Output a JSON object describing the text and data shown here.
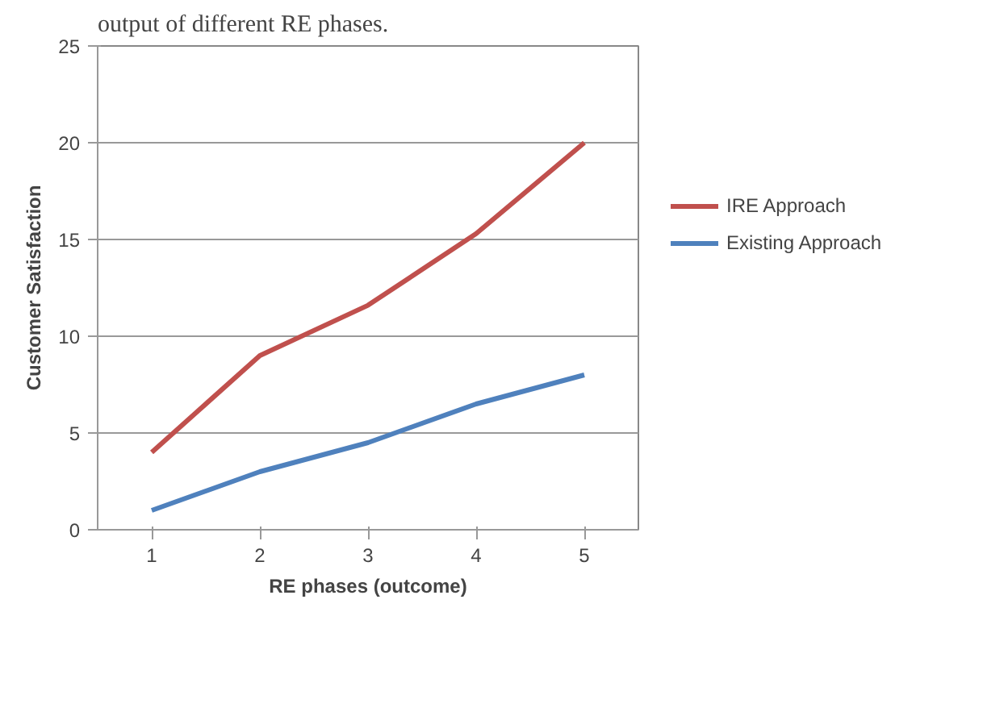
{
  "chart_data": {
    "type": "line",
    "xlabel": "RE phases (outcome)",
    "ylabel": "Customer Satisfaction",
    "categories": [
      "1",
      "2",
      "3",
      "4",
      "5"
    ],
    "series": [
      {
        "name": "IRE Approach",
        "color": "#c0504d",
        "values": [
          4,
          9,
          11.6,
          15.3,
          20
        ]
      },
      {
        "name": "Existing Approach",
        "color": "#4f81bd",
        "values": [
          1,
          3,
          4.5,
          6.5,
          8
        ]
      }
    ],
    "ylim": [
      0,
      25
    ],
    "yticks": [
      0,
      5,
      10,
      15,
      20,
      25
    ],
    "grid": "y",
    "legend": "right",
    "marker": "none",
    "annotations": [
      "output of different RE phases."
    ]
  }
}
